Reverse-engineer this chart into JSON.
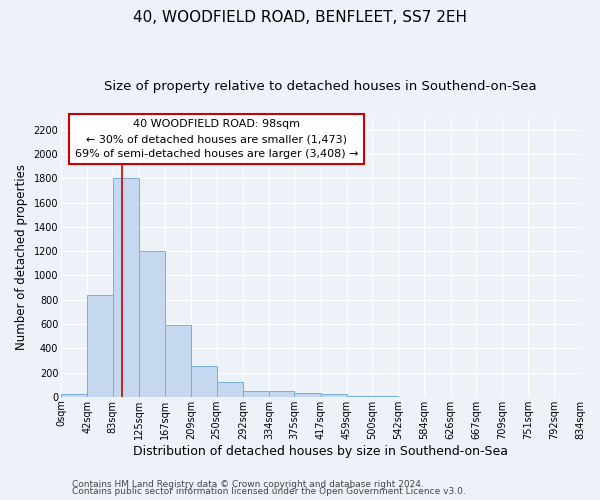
{
  "title": "40, WOODFIELD ROAD, BENFLEET, SS7 2EH",
  "subtitle": "Size of property relative to detached houses in Southend-on-Sea",
  "xlabel": "Distribution of detached houses by size in Southend-on-Sea",
  "ylabel": "Number of detached properties",
  "bar_edges": [
    0,
    42,
    83,
    125,
    167,
    209,
    250,
    292,
    334,
    375,
    417,
    459,
    500,
    542,
    584,
    626,
    667,
    709,
    751,
    792,
    834
  ],
  "bar_heights": [
    25,
    840,
    1800,
    1200,
    590,
    255,
    125,
    45,
    45,
    30,
    20,
    5,
    3,
    2,
    1,
    1,
    0,
    0,
    0,
    0
  ],
  "bar_color": "#c5d8ef",
  "bar_edge_color": "#7aaed6",
  "property_size": 98,
  "property_line_color": "#cc0000",
  "xlim": [
    0,
    834
  ],
  "ylim": [
    0,
    2300
  ],
  "yticks": [
    0,
    200,
    400,
    600,
    800,
    1000,
    1200,
    1400,
    1600,
    1800,
    2000,
    2200
  ],
  "annotation_line1": "40 WOODFIELD ROAD: 98sqm",
  "annotation_line2": "← 30% of detached houses are smaller (1,473)",
  "annotation_line3": "69% of semi-detached houses are larger (3,408) →",
  "annotation_box_color": "#cc0000",
  "footnote1": "Contains HM Land Registry data © Crown copyright and database right 2024.",
  "footnote2": "Contains public sector information licensed under the Open Government Licence v3.0.",
  "background_color": "#edf2f9",
  "grid_color": "#ffffff",
  "title_fontsize": 11,
  "subtitle_fontsize": 9.5,
  "tick_label_fontsize": 7,
  "ylabel_fontsize": 8.5,
  "xlabel_fontsize": 9,
  "annotation_fontsize": 8,
  "footnote_fontsize": 6.5
}
